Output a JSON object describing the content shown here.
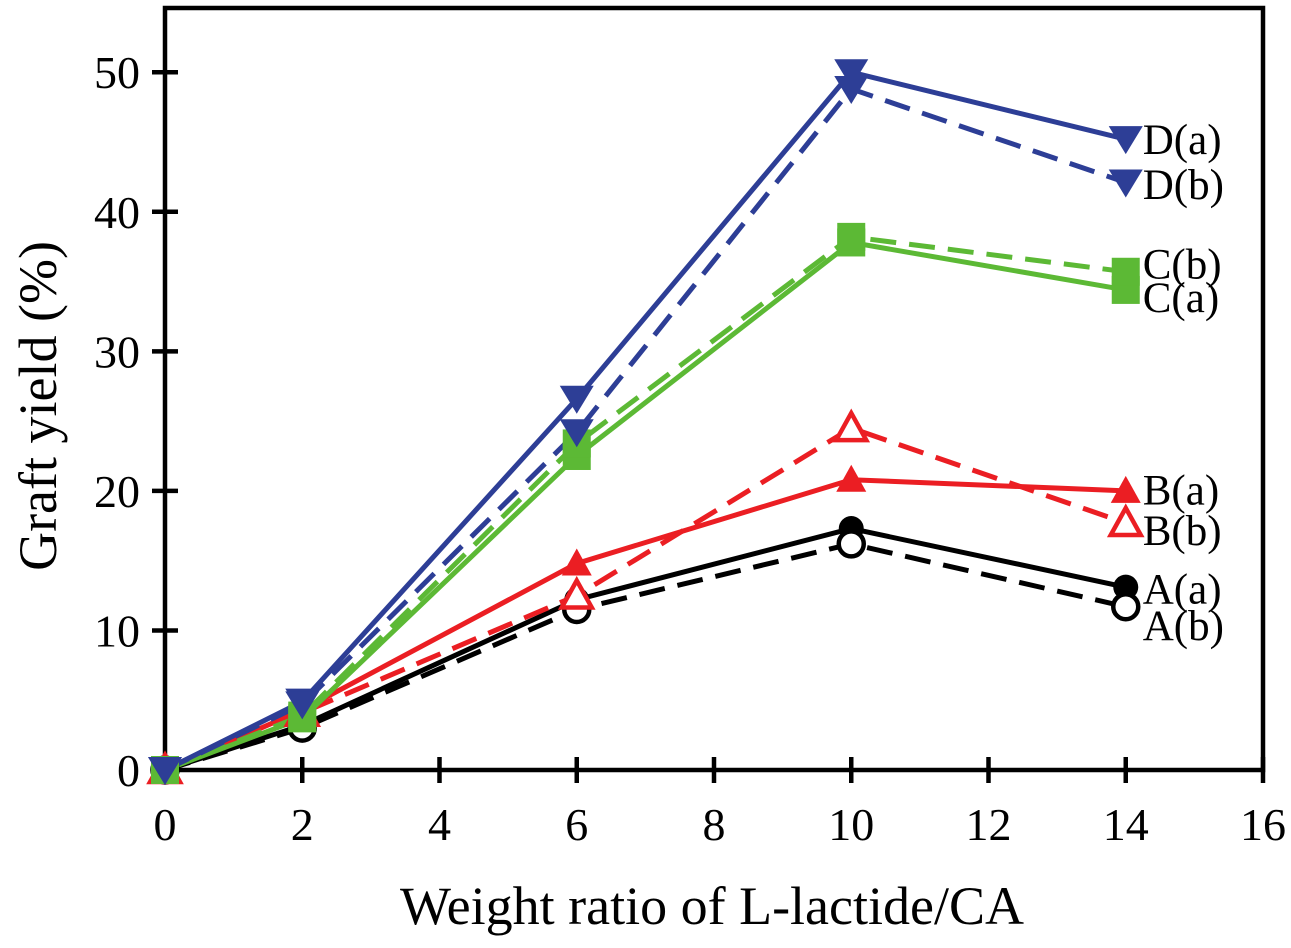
{
  "chart_data": {
    "type": "line",
    "title": "",
    "xlabel": "Weight ratio of L-lactide/CA",
    "ylabel": "Graft yield (%)",
    "xlim": [
      0,
      16
    ],
    "ylim": [
      0,
      54.6
    ],
    "x_ticks": [
      0,
      2,
      4,
      6,
      8,
      10,
      12,
      14,
      16
    ],
    "y_ticks": [
      0,
      10,
      20,
      30,
      40,
      50
    ],
    "grid": false,
    "background": "#ffffff",
    "axis_color": "#000000",
    "legend_position": "labels-right-of-last-points",
    "x": [
      0,
      2,
      6,
      10,
      14
    ],
    "series": [
      {
        "name": "A(a)",
        "color": "#000000",
        "line": "solid",
        "marker": "circle",
        "marker_fill": "filled",
        "values": [
          0,
          3.2,
          12.2,
          17.3,
          13.1
        ],
        "label_y": 13.0
      },
      {
        "name": "A(b)",
        "color": "#000000",
        "line": "dashed",
        "marker": "circle",
        "marker_fill": "open",
        "values": [
          0,
          3.0,
          11.5,
          16.2,
          11.7
        ],
        "label_y": 10.4
      },
      {
        "name": "B(a)",
        "color": "#eb1e23",
        "line": "solid",
        "marker": "triangle-up",
        "marker_fill": "filled",
        "values": [
          0,
          4.3,
          14.8,
          20.8,
          20.0
        ],
        "label_y": 20.1
      },
      {
        "name": "B(b)",
        "color": "#eb1e23",
        "line": "dashed",
        "marker": "triangle-up",
        "marker_fill": "open",
        "values": [
          0,
          4.1,
          12.5,
          24.5,
          17.7
        ],
        "label_y": 17.2
      },
      {
        "name": "C(a)",
        "color": "#5cb935",
        "line": "solid",
        "marker": "square",
        "marker_fill": "filled",
        "values": [
          0,
          3.7,
          22.5,
          37.8,
          34.4
        ],
        "label_y": 33.9
      },
      {
        "name": "C(b)",
        "color": "#5cb935",
        "line": "dashed",
        "marker": "square",
        "marker_fill": "filled",
        "values": [
          0,
          3.9,
          23.4,
          38.2,
          35.7
        ],
        "label_y": 36.3
      },
      {
        "name": "D(a)",
        "color": "#2d3e96",
        "line": "solid",
        "marker": "triangle-down",
        "marker_fill": "filled",
        "values": [
          0,
          4.9,
          26.6,
          50.0,
          45.2
        ],
        "label_y": 45.2
      },
      {
        "name": "D(b)",
        "color": "#2d3e96",
        "line": "dashed",
        "marker": "triangle-down",
        "marker_fill": "filled",
        "values": [
          0,
          4.7,
          24.2,
          48.8,
          42.1
        ],
        "label_y": 42.0
      }
    ]
  }
}
